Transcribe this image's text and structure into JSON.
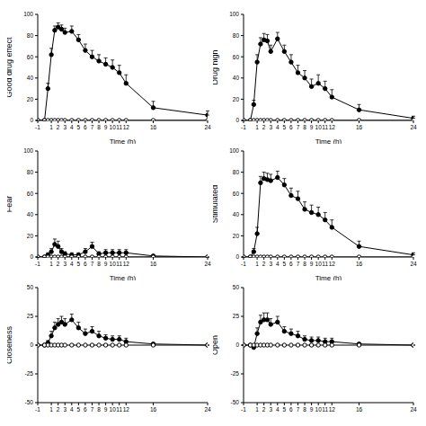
{
  "chart_data": [
    {
      "type": "line",
      "ylabel": "Good drug effect",
      "xlabel": "Time (h)",
      "x": [
        -1,
        0,
        0.5,
        1,
        1.5,
        2,
        2.5,
        3,
        4,
        5,
        6,
        7,
        8,
        9,
        10,
        11,
        12,
        16,
        24
      ],
      "xlim": [
        -1,
        24
      ],
      "xticks": [
        -1,
        1,
        2,
        3,
        4,
        5,
        6,
        7,
        8,
        9,
        10,
        11,
        12,
        16,
        24
      ],
      "ylim": [
        0,
        100
      ],
      "yticks": [
        0,
        20,
        40,
        60,
        80,
        100
      ],
      "series": [
        {
          "color": "#000000",
          "marker": "filled",
          "values": [
            0,
            0,
            30,
            62,
            85,
            88,
            86,
            83,
            84,
            76,
            66,
            60,
            56,
            53,
            50,
            45,
            35,
            12,
            5
          ],
          "errors": [
            0,
            0,
            5,
            6,
            4,
            4,
            4,
            4,
            5,
            5,
            6,
            6,
            6,
            6,
            7,
            7,
            8,
            6,
            4
          ]
        },
        {
          "color": "#000000",
          "marker": "open",
          "values": [
            0,
            0,
            0,
            0,
            0,
            0,
            0,
            0,
            0,
            0,
            0,
            0,
            0,
            0,
            0,
            0,
            0,
            0,
            0
          ]
        }
      ]
    },
    {
      "type": "line",
      "ylabel": "Drug high",
      "xlabel": "Time (h)",
      "x": [
        -1,
        0,
        0.5,
        1,
        1.5,
        2,
        2.5,
        3,
        4,
        5,
        6,
        7,
        8,
        9,
        10,
        11,
        12,
        16,
        24
      ],
      "xlim": [
        -1,
        24
      ],
      "xticks": [
        -1,
        1,
        2,
        3,
        4,
        5,
        6,
        7,
        8,
        9,
        10,
        11,
        12,
        16,
        24
      ],
      "ylim": [
        0,
        100
      ],
      "yticks": [
        0,
        20,
        40,
        60,
        80,
        100
      ],
      "series": [
        {
          "color": "#000000",
          "marker": "filled",
          "values": [
            0,
            0,
            15,
            55,
            72,
            76,
            75,
            65,
            77,
            65,
            55,
            45,
            40,
            32,
            35,
            30,
            22,
            10,
            2
          ],
          "errors": [
            0,
            0,
            4,
            7,
            6,
            6,
            6,
            6,
            6,
            6,
            7,
            7,
            7,
            7,
            8,
            7,
            7,
            5,
            2
          ]
        },
        {
          "color": "#000000",
          "marker": "open",
          "values": [
            0,
            0,
            0,
            0,
            0,
            0,
            0,
            0,
            0,
            0,
            0,
            0,
            0,
            0,
            0,
            0,
            0,
            0,
            0
          ]
        }
      ]
    },
    {
      "type": "line",
      "ylabel": "Fear",
      "xlabel": "Time (h)",
      "x": [
        -1,
        0,
        0.5,
        1,
        1.5,
        2,
        2.5,
        3,
        4,
        5,
        6,
        7,
        8,
        9,
        10,
        11,
        12,
        16,
        24
      ],
      "xlim": [
        -1,
        24
      ],
      "xticks": [
        -1,
        1,
        2,
        3,
        4,
        5,
        6,
        7,
        8,
        9,
        10,
        11,
        12,
        16,
        24
      ],
      "ylim": [
        0,
        100
      ],
      "yticks": [
        0,
        20,
        40,
        60,
        80,
        100
      ],
      "series": [
        {
          "color": "#000000",
          "marker": "filled",
          "values": [
            0,
            0,
            2,
            5,
            12,
            10,
            5,
            3,
            2,
            2,
            5,
            10,
            3,
            4,
            4,
            4,
            4,
            1,
            0
          ],
          "errors": [
            0,
            0,
            2,
            3,
            5,
            5,
            3,
            2,
            2,
            2,
            3,
            4,
            2,
            3,
            3,
            3,
            3,
            1,
            0
          ]
        },
        {
          "color": "#000000",
          "marker": "open",
          "values": [
            0,
            0,
            0,
            0,
            0,
            0,
            0,
            0,
            0,
            0,
            0,
            0,
            0,
            0,
            0,
            0,
            0,
            0,
            0
          ]
        }
      ]
    },
    {
      "type": "line",
      "ylabel": "Stimulated",
      "xlabel": "Time (h)",
      "x": [
        -1,
        0,
        0.5,
        1,
        1.5,
        2,
        2.5,
        3,
        4,
        5,
        6,
        7,
        8,
        9,
        10,
        11,
        12,
        16,
        24
      ],
      "xlim": [
        -1,
        24
      ],
      "xticks": [
        -1,
        1,
        2,
        3,
        4,
        5,
        6,
        7,
        8,
        9,
        10,
        11,
        12,
        16,
        24
      ],
      "ylim": [
        0,
        100
      ],
      "yticks": [
        0,
        20,
        40,
        60,
        80,
        100
      ],
      "series": [
        {
          "color": "#000000",
          "marker": "filled",
          "values": [
            0,
            0,
            5,
            22,
            70,
            74,
            73,
            72,
            75,
            68,
            58,
            55,
            45,
            42,
            40,
            35,
            28,
            10,
            2
          ],
          "errors": [
            0,
            0,
            3,
            6,
            6,
            6,
            6,
            6,
            6,
            6,
            7,
            7,
            7,
            7,
            7,
            7,
            7,
            5,
            2
          ]
        },
        {
          "color": "#000000",
          "marker": "open",
          "values": [
            0,
            0,
            0,
            0,
            0,
            0,
            0,
            0,
            0,
            0,
            0,
            0,
            0,
            0,
            0,
            0,
            0,
            0,
            0
          ]
        }
      ]
    },
    {
      "type": "line",
      "ylabel": "Closeness",
      "x": [
        -1,
        0,
        0.5,
        1,
        1.5,
        2,
        2.5,
        3,
        4,
        5,
        6,
        7,
        8,
        9,
        10,
        11,
        12,
        16,
        24
      ],
      "xlim": [
        -1,
        24
      ],
      "xticks": [
        -1,
        1,
        2,
        3,
        4,
        5,
        6,
        7,
        8,
        9,
        10,
        11,
        12,
        16,
        24
      ],
      "ylim": [
        -50,
        50
      ],
      "yticks": [
        -50,
        -25,
        0,
        25,
        50
      ],
      "series": [
        {
          "color": "#000000",
          "marker": "filled",
          "values": [
            0,
            0,
            2,
            8,
            15,
            18,
            20,
            18,
            22,
            15,
            10,
            12,
            8,
            6,
            5,
            5,
            3,
            1,
            0
          ],
          "errors": [
            0,
            0,
            2,
            4,
            5,
            5,
            5,
            5,
            5,
            5,
            4,
            4,
            4,
            3,
            3,
            3,
            3,
            1,
            0
          ]
        },
        {
          "color": "#000000",
          "marker": "open",
          "values": [
            0,
            0,
            0,
            0,
            0,
            0,
            0,
            0,
            0,
            0,
            0,
            0,
            0,
            0,
            0,
            0,
            0,
            0,
            0
          ]
        }
      ]
    },
    {
      "type": "line",
      "ylabel": "Open",
      "x": [
        -1,
        0,
        0.5,
        1,
        1.5,
        2,
        2.5,
        3,
        4,
        5,
        6,
        7,
        8,
        9,
        10,
        11,
        12,
        16,
        24
      ],
      "xlim": [
        -1,
        24
      ],
      "xticks": [
        -1,
        1,
        2,
        3,
        4,
        5,
        6,
        7,
        8,
        9,
        10,
        11,
        12,
        16,
        24
      ],
      "ylim": [
        -50,
        50
      ],
      "yticks": [
        -50,
        -25,
        0,
        25,
        50
      ],
      "series": [
        {
          "color": "#000000",
          "marker": "filled",
          "values": [
            0,
            0,
            -2,
            10,
            20,
            22,
            22,
            18,
            20,
            12,
            10,
            8,
            5,
            4,
            4,
            3,
            3,
            1,
            0
          ],
          "errors": [
            0,
            0,
            3,
            5,
            6,
            6,
            6,
            5,
            5,
            4,
            4,
            4,
            3,
            3,
            3,
            3,
            3,
            1,
            0
          ]
        },
        {
          "color": "#000000",
          "marker": "open",
          "values": [
            0,
            0,
            0,
            0,
            0,
            0,
            0,
            0,
            0,
            0,
            0,
            0,
            0,
            0,
            0,
            0,
            0,
            0,
            0
          ]
        }
      ]
    }
  ]
}
